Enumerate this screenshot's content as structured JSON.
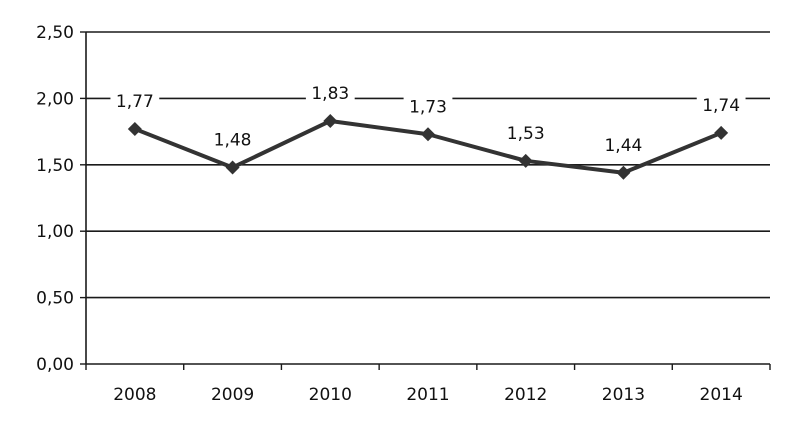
{
  "chart_data": {
    "type": "line",
    "categories": [
      "2008",
      "2009",
      "2010",
      "2011",
      "2012",
      "2013",
      "2014"
    ],
    "series": [
      {
        "values": [
          1.77,
          1.48,
          1.83,
          1.73,
          1.53,
          1.44,
          1.74
        ],
        "labels": [
          "1,77",
          "1,48",
          "1,83",
          "1,73",
          "1,53",
          "1,44",
          "1,74"
        ],
        "color": "#333333",
        "marker": "diamond"
      }
    ],
    "yticks": [
      "0,00",
      "0,50",
      "1,00",
      "1,50",
      "2,00",
      "2,50"
    ],
    "ylim": [
      0,
      2.5
    ],
    "grid": true,
    "legend": "none"
  }
}
